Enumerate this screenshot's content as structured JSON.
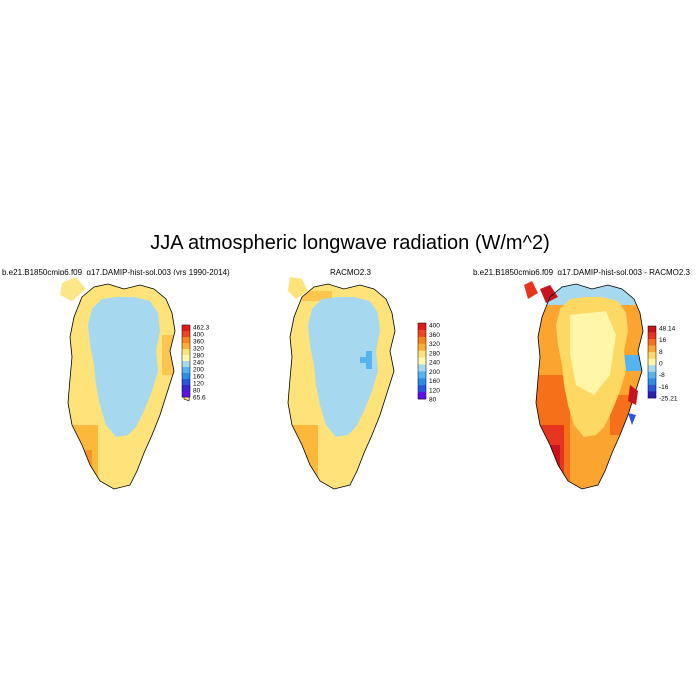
{
  "title": "JJA atmospheric longwave radiation (W/m^2)",
  "panels": [
    {
      "title": "b.e21.B1850cmip6.f09_g17.DAMIP-hist-sol.003 (yrs 1990-2014)",
      "colorbar_labels": [
        "462.3",
        "400",
        "360",
        "320",
        "280",
        "240",
        "200",
        "160",
        "120",
        "80",
        "65.6"
      ],
      "colorbar_colors": [
        "#e11b1b",
        "#f04523",
        "#f7861c",
        "#fbb030",
        "#fde37a",
        "#fffbb3",
        "#a6d8f0",
        "#55b4ef",
        "#2b8fe8",
        "#2a55e0",
        "#3a22d8",
        "#5e10e6"
      ]
    },
    {
      "title": "RACMO2.3",
      "colorbar_labels": [
        "400",
        "360",
        "320",
        "280",
        "240",
        "200",
        "160",
        "120",
        "80"
      ],
      "colorbar_colors": [
        "#e11b1b",
        "#f04523",
        "#f7861c",
        "#fbb030",
        "#fde37a",
        "#fffbb3",
        "#a6d8f0",
        "#55b4ef",
        "#2b8fe8",
        "#2a55e0",
        "#5e10e6"
      ]
    },
    {
      "title": "b.e21.B1850cmip6.f09_g17.DAMIP-hist-sol.003 - RACMO2.3",
      "colorbar_labels": [
        "48.14",
        "16",
        "8",
        "0",
        "-8",
        "-16",
        "-25.21"
      ],
      "colorbar_colors": [
        "#c8141c",
        "#e8351f",
        "#f6701a",
        "#fba430",
        "#fdd862",
        "#fff6a8",
        "#a6d8f0",
        "#55b4ef",
        "#2b8fe8",
        "#2a55e0",
        "#2a22b8"
      ]
    }
  ]
}
